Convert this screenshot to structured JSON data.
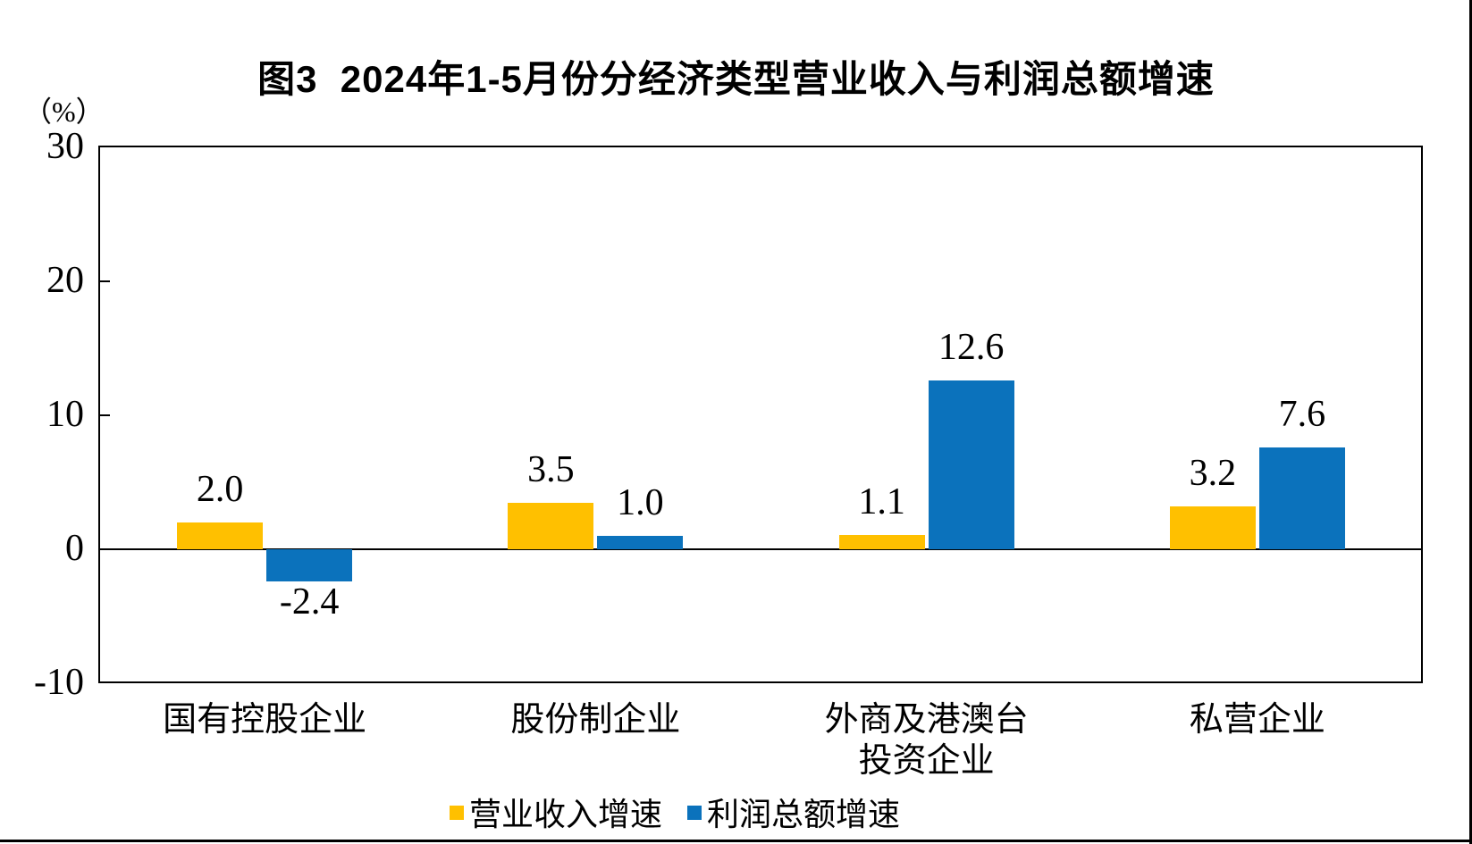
{
  "title": "图3  2024年1-5月份分经济类型营业收入与利润总额增速",
  "unit_label": "（%）",
  "colors": {
    "revenue_yellow": "#FFC000",
    "profit_blue": "#0B72BC",
    "axis_black": "#000000"
  },
  "chart_data": {
    "type": "bar",
    "title": "图3 2024年1-5月份分经济类型营业收入与利润总额增速",
    "categories": [
      "国有控股企业",
      "股份制企业",
      "外商及港澳台\n投资企业",
      "私营企业"
    ],
    "series": [
      {
        "key": "revenue",
        "name": "营业收入增速",
        "color_key": "revenue_yellow",
        "values": [
          2.0,
          3.5,
          1.1,
          3.2
        ]
      },
      {
        "key": "profit",
        "name": "利润总额增速",
        "color_key": "profit_blue",
        "values": [
          -2.4,
          1.0,
          12.6,
          7.6
        ]
      }
    ],
    "ylabel": "（%）",
    "ylim": [
      -10,
      30
    ],
    "yticks": [
      30,
      20,
      10,
      0,
      -10
    ],
    "value_label_decimals": 1,
    "grid": false,
    "legend_position": "bottom"
  }
}
